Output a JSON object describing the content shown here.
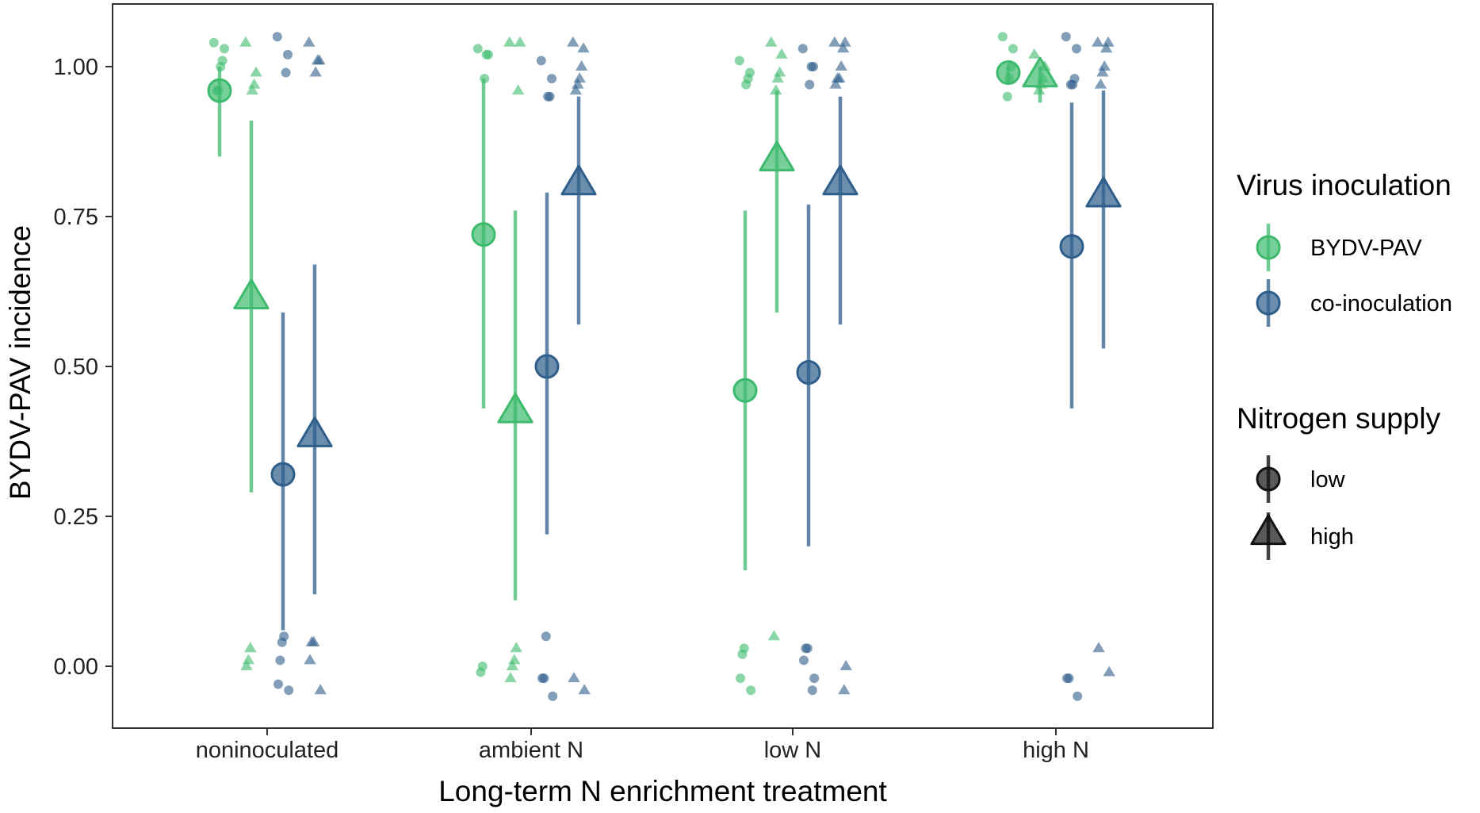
{
  "chart_data": {
    "type": "scatter",
    "title": "",
    "xlabel": "Long-term N enrichment treatment",
    "ylabel": "BYDV-PAV incidence",
    "categories": [
      "noninoculated",
      "ambient N",
      "low N",
      "high N"
    ],
    "ylim": [
      -0.1,
      1.1
    ],
    "yticks": [
      "0.00",
      "0.25",
      "0.50",
      "0.75",
      "1.00"
    ],
    "grid": false,
    "legend_position": "right",
    "colors": {
      "BYDV-PAV": "#3dba6d",
      "co-inoculation": "#2e5e8a"
    },
    "legend": {
      "virus": {
        "title": "Virus inoculation",
        "entries": [
          "BYDV-PAV",
          "co-inoculation"
        ]
      },
      "nitrogen": {
        "title": "Nitrogen supply",
        "entries": [
          "low",
          "high"
        ]
      }
    },
    "summary": [
      {
        "category": "noninoculated",
        "virus": "BYDV-PAV",
        "nitrogen": "low",
        "mean": 0.96,
        "lower": 0.85,
        "upper": 1.0
      },
      {
        "category": "noninoculated",
        "virus": "BYDV-PAV",
        "nitrogen": "high",
        "mean": 0.61,
        "lower": 0.29,
        "upper": 0.91
      },
      {
        "category": "noninoculated",
        "virus": "co-inoculation",
        "nitrogen": "low",
        "mean": 0.32,
        "lower": 0.06,
        "upper": 0.59
      },
      {
        "category": "noninoculated",
        "virus": "co-inoculation",
        "nitrogen": "high",
        "mean": 0.38,
        "lower": 0.12,
        "upper": 0.67
      },
      {
        "category": "ambient N",
        "virus": "BYDV-PAV",
        "nitrogen": "low",
        "mean": 0.72,
        "lower": 0.43,
        "upper": 0.98
      },
      {
        "category": "ambient N",
        "virus": "BYDV-PAV",
        "nitrogen": "high",
        "mean": 0.42,
        "lower": 0.11,
        "upper": 0.76
      },
      {
        "category": "ambient N",
        "virus": "co-inoculation",
        "nitrogen": "low",
        "mean": 0.5,
        "lower": 0.22,
        "upper": 0.79
      },
      {
        "category": "ambient N",
        "virus": "co-inoculation",
        "nitrogen": "high",
        "mean": 0.8,
        "lower": 0.57,
        "upper": 0.95
      },
      {
        "category": "low N",
        "virus": "BYDV-PAV",
        "nitrogen": "low",
        "mean": 0.46,
        "lower": 0.16,
        "upper": 0.76
      },
      {
        "category": "low N",
        "virus": "BYDV-PAV",
        "nitrogen": "high",
        "mean": 0.84,
        "lower": 0.59,
        "upper": 0.96
      },
      {
        "category": "low N",
        "virus": "co-inoculation",
        "nitrogen": "low",
        "mean": 0.49,
        "lower": 0.2,
        "upper": 0.77
      },
      {
        "category": "low N",
        "virus": "co-inoculation",
        "nitrogen": "high",
        "mean": 0.8,
        "lower": 0.57,
        "upper": 0.95
      },
      {
        "category": "high N",
        "virus": "BYDV-PAV",
        "nitrogen": "low",
        "mean": 0.99,
        "lower": 0.97,
        "upper": 1.0
      },
      {
        "category": "high N",
        "virus": "BYDV-PAV",
        "nitrogen": "high",
        "mean": 0.98,
        "lower": 0.94,
        "upper": 1.0
      },
      {
        "category": "high N",
        "virus": "co-inoculation",
        "nitrogen": "low",
        "mean": 0.7,
        "lower": 0.43,
        "upper": 0.94
      },
      {
        "category": "high N",
        "virus": "co-inoculation",
        "nitrogen": "high",
        "mean": 0.78,
        "lower": 0.53,
        "upper": 0.96
      }
    ],
    "observations": [
      {
        "category": "noninoculated",
        "virus": "BYDV-PAV",
        "nitrogen": "low",
        "y": [
          1.04,
          1.03,
          1.01,
          1.0,
          0.96,
          0.96
        ]
      },
      {
        "category": "noninoculated",
        "virus": "BYDV-PAV",
        "nitrogen": "high",
        "y": [
          1.04,
          0.99,
          0.97,
          0.96,
          0.03,
          0.01,
          0.0
        ]
      },
      {
        "category": "noninoculated",
        "virus": "co-inoculation",
        "nitrogen": "low",
        "y": [
          1.05,
          1.02,
          0.99,
          0.05,
          0.04,
          0.01,
          -0.03,
          -0.04
        ]
      },
      {
        "category": "noninoculated",
        "virus": "co-inoculation",
        "nitrogen": "high",
        "y": [
          1.04,
          1.01,
          1.01,
          0.99,
          0.04,
          0.04,
          0.01,
          -0.04
        ]
      },
      {
        "category": "ambient N",
        "virus": "BYDV-PAV",
        "nitrogen": "low",
        "y": [
          1.03,
          1.02,
          1.02,
          0.98,
          0.0,
          -0.01
        ]
      },
      {
        "category": "ambient N",
        "virus": "BYDV-PAV",
        "nitrogen": "high",
        "y": [
          1.04,
          1.04,
          0.96,
          0.03,
          0.01,
          0.0,
          -0.02
        ]
      },
      {
        "category": "ambient N",
        "virus": "co-inoculation",
        "nitrogen": "low",
        "y": [
          1.01,
          0.98,
          0.95,
          0.95,
          0.05,
          -0.02,
          -0.02,
          -0.05
        ]
      },
      {
        "category": "ambient N",
        "virus": "co-inoculation",
        "nitrogen": "high",
        "y": [
          1.04,
          1.03,
          1.0,
          0.98,
          0.97,
          0.96,
          -0.02,
          -0.04
        ]
      },
      {
        "category": "low N",
        "virus": "BYDV-PAV",
        "nitrogen": "low",
        "y": [
          1.01,
          0.99,
          0.98,
          0.97,
          0.03,
          0.02,
          -0.02,
          -0.04
        ]
      },
      {
        "category": "low N",
        "virus": "BYDV-PAV",
        "nitrogen": "high",
        "y": [
          1.04,
          1.02,
          0.99,
          0.98,
          0.96,
          0.05
        ]
      },
      {
        "category": "low N",
        "virus": "co-inoculation",
        "nitrogen": "low",
        "y": [
          1.03,
          1.0,
          1.0,
          0.97,
          0.03,
          0.03,
          0.01,
          -0.02,
          -0.04
        ]
      },
      {
        "category": "low N",
        "virus": "co-inoculation",
        "nitrogen": "high",
        "y": [
          1.04,
          1.04,
          1.03,
          1.0,
          0.98,
          0.98,
          0.97,
          0.0,
          -0.04
        ]
      },
      {
        "category": "high N",
        "virus": "BYDV-PAV",
        "nitrogen": "low",
        "y": [
          1.05,
          1.03,
          1.0,
          0.98,
          0.95
        ]
      },
      {
        "category": "high N",
        "virus": "BYDV-PAV",
        "nitrogen": "high",
        "y": [
          1.02,
          1.0,
          0.98,
          0.97,
          0.96
        ]
      },
      {
        "category": "high N",
        "virus": "co-inoculation",
        "nitrogen": "low",
        "y": [
          1.05,
          1.03,
          0.98,
          0.97,
          0.97,
          -0.02,
          -0.02,
          -0.05
        ]
      },
      {
        "category": "high N",
        "virus": "co-inoculation",
        "nitrogen": "high",
        "y": [
          1.04,
          1.04,
          1.03,
          1.0,
          0.99,
          0.97,
          0.03,
          -0.01
        ]
      }
    ]
  }
}
